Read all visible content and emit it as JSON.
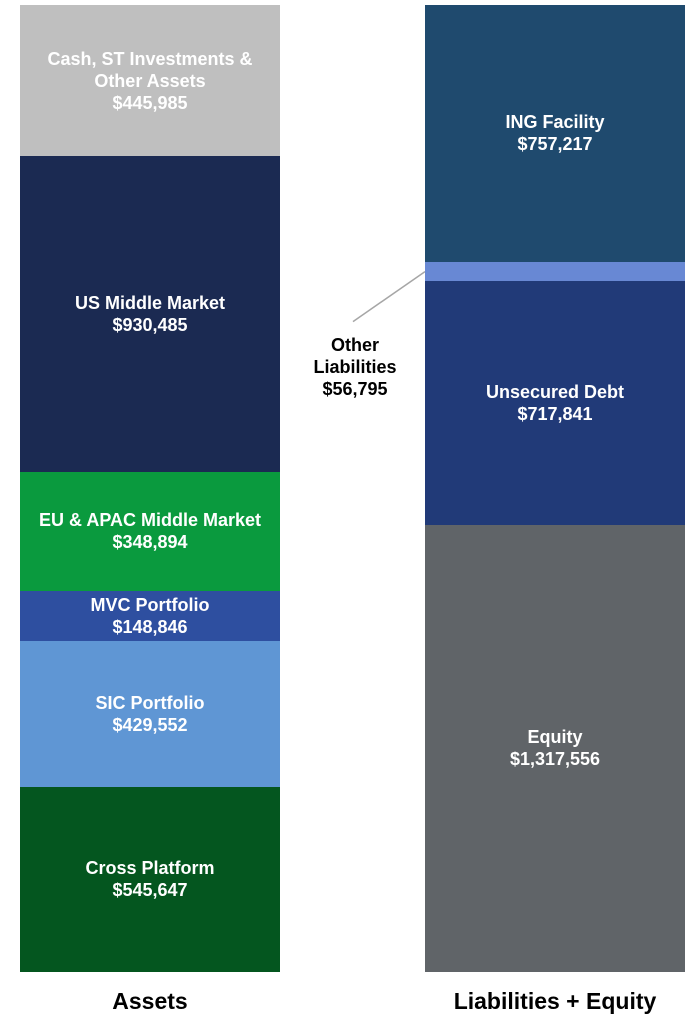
{
  "chart_data": {
    "type": "stacked_bar",
    "categories": [
      "Assets",
      "Liabilities + Equity"
    ],
    "series": [
      {
        "name": "Cross Platform",
        "color": "#04561f",
        "values": [
          545647,
          null
        ],
        "value_labels": [
          "$545,647",
          null
        ]
      },
      {
        "name": "SIC Portfolio",
        "color": "#5f96d4",
        "values": [
          429552,
          null
        ],
        "value_labels": [
          "$429,552",
          null
        ]
      },
      {
        "name": "MVC Portfolio",
        "color": "#2e4fa0",
        "values": [
          148846,
          null
        ],
        "value_labels": [
          "$148,846",
          null
        ]
      },
      {
        "name": "EU & APAC Middle Market",
        "color": "#0a9a3e",
        "values": [
          348894,
          null
        ],
        "value_labels": [
          "$348,894",
          null
        ]
      },
      {
        "name": "US Middle Market",
        "color": "#1b2a52",
        "values": [
          930485,
          null
        ],
        "value_labels": [
          "$930,485",
          null
        ]
      },
      {
        "name": "Cash, ST Investments & Other Assets",
        "color": "#bfbfbf",
        "values": [
          445985,
          null
        ],
        "value_labels": [
          "$445,985",
          null
        ]
      },
      {
        "name": "Equity",
        "color": "#606468",
        "values": [
          null,
          1317556
        ],
        "value_labels": [
          null,
          "$1,317,556"
        ]
      },
      {
        "name": "Unsecured Debt",
        "color": "#213a78",
        "values": [
          null,
          717841
        ],
        "value_labels": [
          null,
          "$717,841"
        ]
      },
      {
        "name": "Other Liabilities",
        "color": "#6888d4",
        "values": [
          null,
          56795
        ],
        "value_labels": [
          null,
          "$56,795"
        ]
      },
      {
        "name": "ING Facility",
        "color": "#1f4a6e",
        "values": [
          null,
          757217
        ],
        "value_labels": [
          null,
          "$757,217"
        ]
      }
    ]
  }
}
